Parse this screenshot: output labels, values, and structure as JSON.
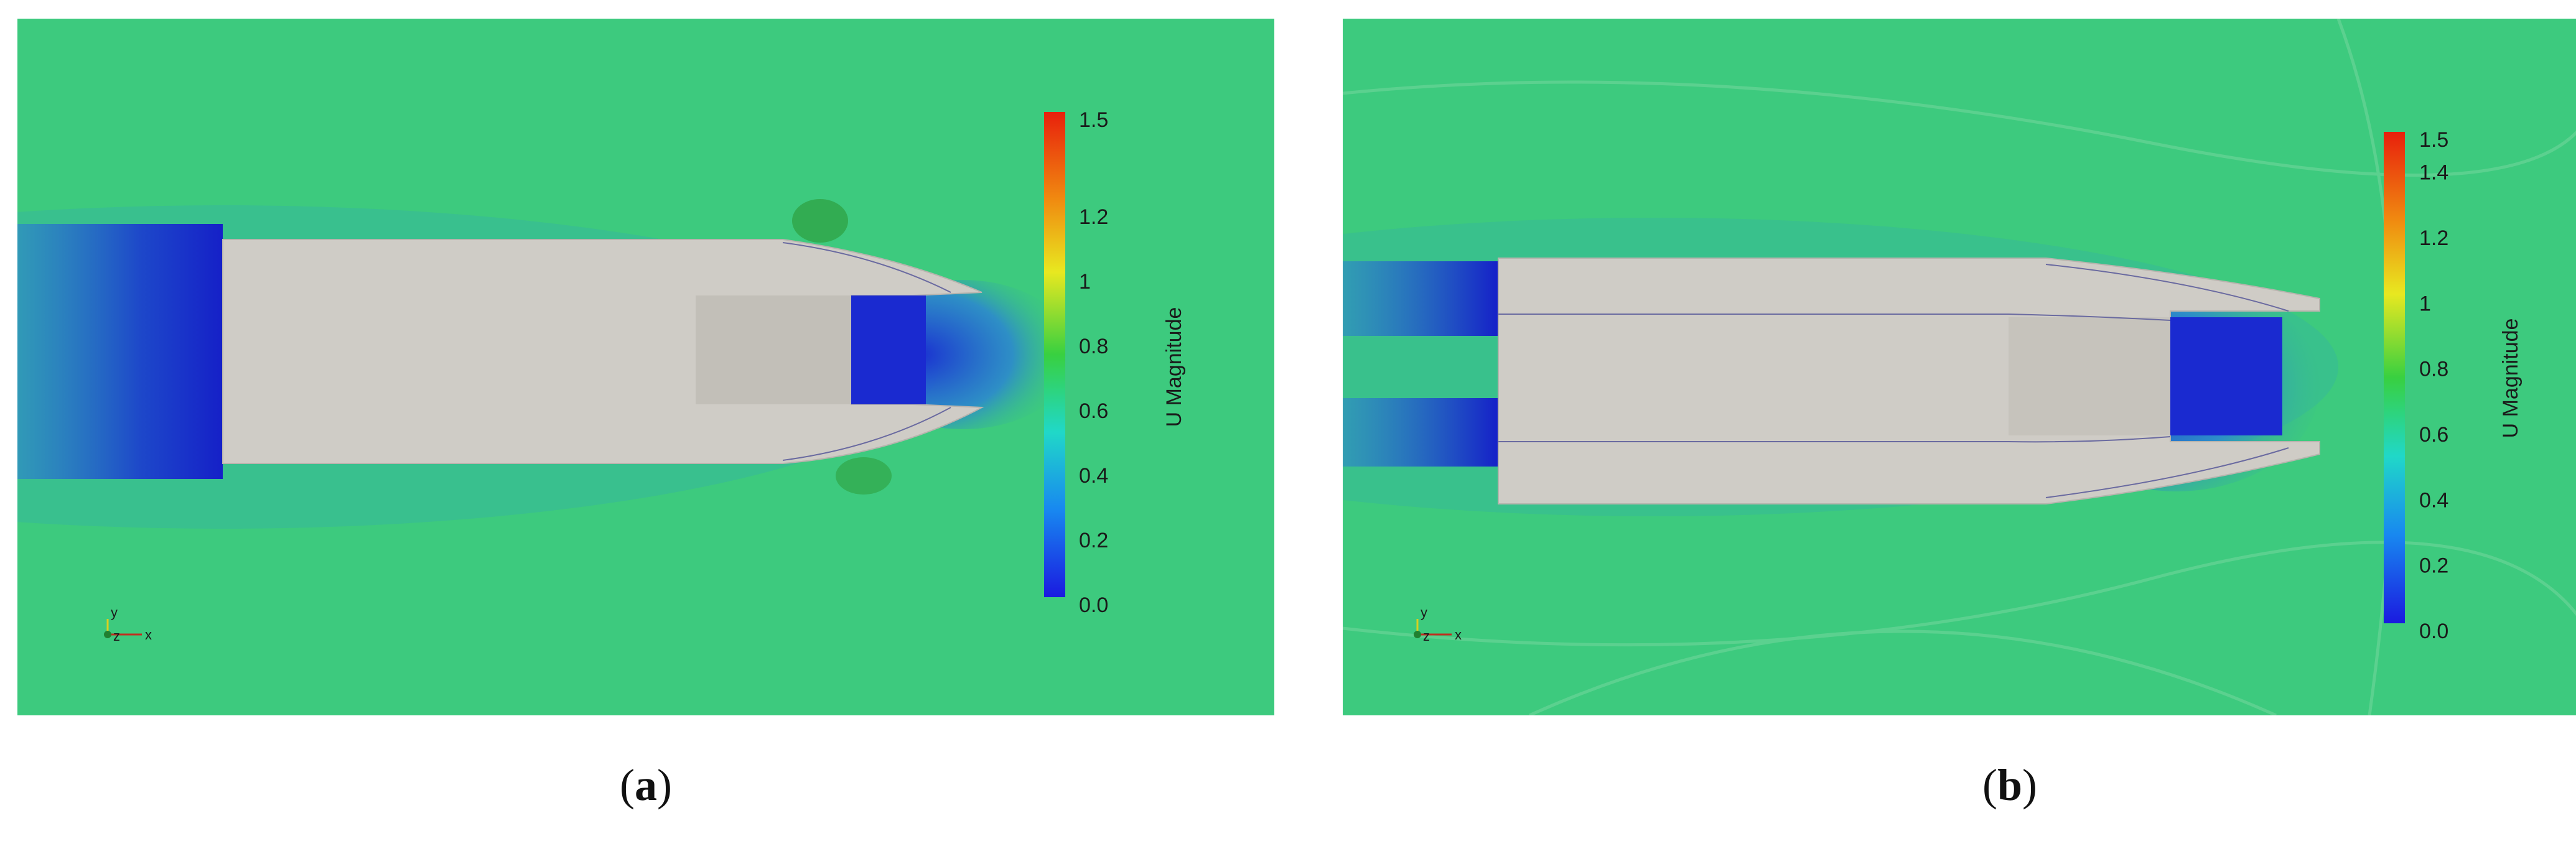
{
  "panels": [
    {
      "id": "a",
      "caption_letter": "a",
      "colorbar": {
        "title": "U Magnitude",
        "ticks": [
          "1.5",
          "1.2",
          "1",
          "0.8",
          "0.6",
          "0.4",
          "0.2",
          "0.0"
        ]
      },
      "axes_labels": {
        "y": "y",
        "z": "z",
        "x": "x"
      }
    },
    {
      "id": "b",
      "caption_letter": "b",
      "colorbar": {
        "title": "U Magnitude",
        "ticks": [
          "1.5",
          "1.4",
          "1.2",
          "1",
          "0.8",
          "0.6",
          "0.4",
          "0.2",
          "0.0"
        ]
      },
      "axes_labels": {
        "y": "y",
        "z": "z",
        "x": "x"
      }
    }
  ],
  "colors": {
    "field": "#3cc97e",
    "hull": "#cfccc6",
    "low_velocity": "#1520c8",
    "colorbar_top": "#e8200c",
    "colorbar_bottom": "#1a1ae0"
  }
}
